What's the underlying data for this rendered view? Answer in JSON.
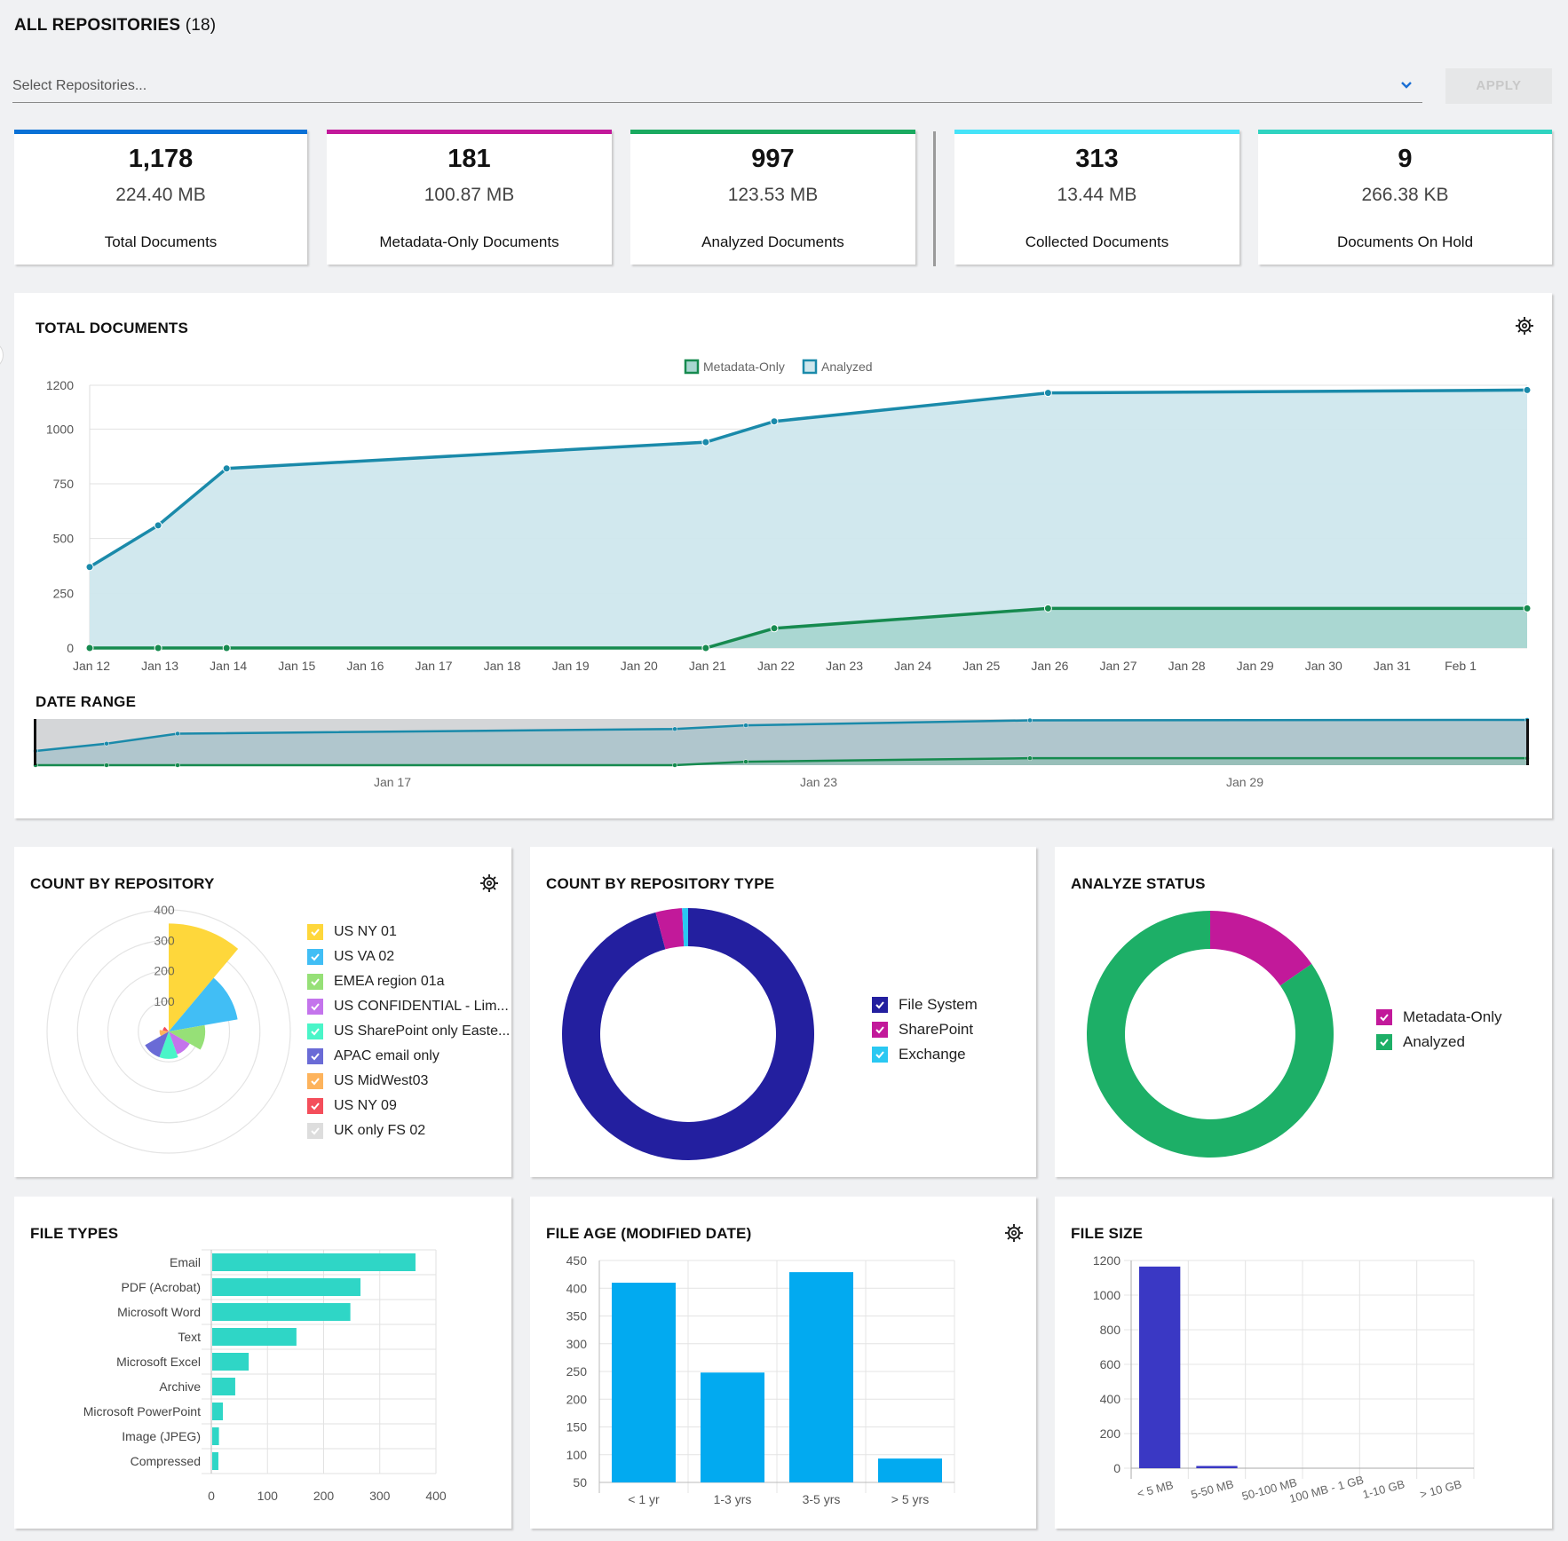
{
  "header": {
    "title": "ALL REPOSITORIES",
    "count": "(18)"
  },
  "filter": {
    "placeholder": "Select Repositories...",
    "apply_label": "APPLY"
  },
  "kpis": [
    {
      "count": "1,178",
      "size": "224.40 MB",
      "label": "Total Documents",
      "color": "#0a71d6"
    },
    {
      "count": "181",
      "size": "100.87 MB",
      "label": "Metadata-Only Documents",
      "color": "#c2199a"
    },
    {
      "count": "997",
      "size": "123.53 MB",
      "label": "Analyzed Documents",
      "color": "#1aaa60"
    },
    {
      "count": "313",
      "size": "13.44 MB",
      "label": "Collected Documents",
      "color": "#45e3f8"
    },
    {
      "count": "9",
      "size": "266.38 KB",
      "label": "Documents On Hold",
      "color": "#2fd3c0"
    }
  ],
  "total_docs": {
    "title": "TOTAL DOCUMENTS",
    "date_range_title": "DATE RANGE"
  },
  "count_by_repo": {
    "title": "COUNT BY REPOSITORY"
  },
  "count_by_type": {
    "title": "COUNT BY REPOSITORY TYPE"
  },
  "analyze_status": {
    "title": "ANALYZE STATUS"
  },
  "file_types": {
    "title": "FILE TYPES"
  },
  "file_age": {
    "title": "FILE AGE (MODIFIED DATE)"
  },
  "file_size": {
    "title": "FILE SIZE"
  },
  "chart_data": [
    {
      "id": "total_documents",
      "type": "area",
      "title": "TOTAL DOCUMENTS",
      "legend": [
        "Metadata-Only",
        "Analyzed"
      ],
      "legend_position": "top-center",
      "x": [
        "Jan 12",
        "Jan 13",
        "Jan 14",
        "Jan 21",
        "Jan 22",
        "Jan 26",
        "Feb 2"
      ],
      "x_day_index": [
        0,
        1,
        2,
        9,
        10,
        14,
        21
      ],
      "xticks": [
        "Jan 12",
        "Jan 13",
        "Jan 14",
        "Jan 15",
        "Jan 16",
        "Jan 17",
        "Jan 18",
        "Jan 19",
        "Jan 20",
        "Jan 21",
        "Jan 22",
        "Jan 23",
        "Jan 24",
        "Jan 25",
        "Jan 26",
        "Jan 27",
        "Jan 28",
        "Jan 29",
        "Jan 30",
        "Jan 31",
        "Feb 1"
      ],
      "series": [
        {
          "name": "Metadata-Only",
          "color": "#168a4f",
          "fill": "#a8d6d0",
          "values": [
            0,
            0,
            0,
            0,
            90,
            181,
            181
          ]
        },
        {
          "name": "Analyzed",
          "color": "#1a8aaa",
          "fill": "#cfe7ed",
          "values": [
            370,
            560,
            820,
            940,
            1035,
            1165,
            1178
          ]
        }
      ],
      "yticks": [
        0,
        250,
        500,
        750,
        1000,
        1200
      ],
      "ylim": [
        0,
        1200
      ],
      "grid": true
    },
    {
      "id": "date_range",
      "type": "area",
      "title": "DATE RANGE",
      "xticks": [
        {
          "label": "Jan 17",
          "day": 5
        },
        {
          "label": "Jan 23",
          "day": 11
        },
        {
          "label": "Jan 29",
          "day": 17
        }
      ]
    },
    {
      "id": "count_by_repository",
      "type": "polar_area",
      "title": "COUNT BY REPOSITORY",
      "rticks": [
        100,
        200,
        300,
        400
      ],
      "rlim": [
        0,
        400
      ],
      "categories": [
        "US NY 01",
        "US VA 02",
        "EMEA region 01a",
        "US CONFIDENTIAL - Lim...",
        "US SharePoint only Easte...",
        "APAC  email only",
        "US MidWest03",
        "US  NY 09",
        "UK only FS 02"
      ],
      "values": [
        355,
        230,
        120,
        80,
        90,
        90,
        30,
        20,
        5
      ],
      "colors": [
        "#fed73b",
        "#41bef5",
        "#96e077",
        "#c474ec",
        "#4af5c8",
        "#6a6bd6",
        "#fdb35c",
        "#f44e5b",
        "#dddddd"
      ]
    },
    {
      "id": "count_by_repository_type",
      "type": "pie",
      "title": "COUNT BY REPOSITORY TYPE",
      "categories": [
        "File System",
        "SharePoint",
        "Exchange"
      ],
      "values": [
        1129,
        40,
        9
      ],
      "colors": [
        "#231f9f",
        "#c2199a",
        "#2ac8f2"
      ],
      "legend_position": "right"
    },
    {
      "id": "analyze_status",
      "type": "pie",
      "title": "ANALYZE STATUS",
      "categories": [
        "Metadata-Only",
        "Analyzed"
      ],
      "values": [
        181,
        997
      ],
      "colors": [
        "#c2199a",
        "#1daf67"
      ],
      "legend_position": "right"
    },
    {
      "id": "file_types",
      "type": "bar",
      "orientation": "horizontal",
      "title": "FILE TYPES",
      "categories": [
        "Email",
        "PDF (Acrobat)",
        "Microsoft Word",
        "Text",
        "Microsoft Excel",
        "Archive",
        "Microsoft PowerPoint",
        "Image (JPEG)",
        "Compressed"
      ],
      "values": [
        362,
        264,
        246,
        150,
        65,
        41,
        19,
        12,
        11
      ],
      "xticks": [
        0,
        100,
        200,
        300,
        400
      ],
      "xlim": [
        0,
        400
      ],
      "color": "#2fd6c6"
    },
    {
      "id": "file_age",
      "type": "bar",
      "title": "FILE AGE (MODIFIED DATE)",
      "categories": [
        "< 1 yr",
        "1-3 yrs",
        "3-5 yrs",
        "> 5 yrs"
      ],
      "values": [
        410,
        248,
        429,
        93
      ],
      "yticks": [
        50,
        100,
        150,
        200,
        250,
        300,
        350,
        400,
        450
      ],
      "ylim": [
        50,
        450
      ],
      "color": "#02aaf0"
    },
    {
      "id": "file_size",
      "type": "bar",
      "title": "FILE SIZE",
      "categories": [
        "< 5 MB",
        "5-50 MB",
        "50-100 MB",
        "100 MB - 1 GB",
        "1-10 GB",
        "> 10 GB"
      ],
      "values": [
        1165,
        13,
        0,
        0,
        0,
        0
      ],
      "yticks": [
        0,
        200,
        400,
        600,
        800,
        1000,
        1200
      ],
      "ylim": [
        0,
        1200
      ],
      "color": "#3a38c4"
    }
  ]
}
